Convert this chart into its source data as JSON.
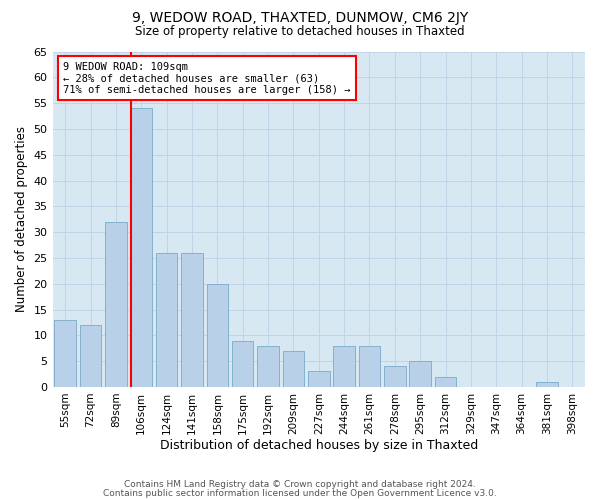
{
  "title1": "9, WEDOW ROAD, THAXTED, DUNMOW, CM6 2JY",
  "title2": "Size of property relative to detached houses in Thaxted",
  "xlabel": "Distribution of detached houses by size in Thaxted",
  "ylabel": "Number of detached properties",
  "categories": [
    "55sqm",
    "72sqm",
    "89sqm",
    "106sqm",
    "124sqm",
    "141sqm",
    "158sqm",
    "175sqm",
    "192sqm",
    "209sqm",
    "227sqm",
    "244sqm",
    "261sqm",
    "278sqm",
    "295sqm",
    "312sqm",
    "329sqm",
    "347sqm",
    "364sqm",
    "381sqm",
    "398sqm"
  ],
  "values": [
    13,
    12,
    32,
    54,
    26,
    26,
    20,
    9,
    8,
    7,
    3,
    8,
    8,
    4,
    5,
    2,
    0,
    0,
    0,
    1,
    0
  ],
  "bar_color": "#b8d0e8",
  "bar_edge_color": "#7aaac8",
  "red_line_index": 3,
  "annotation_text": "9 WEDOW ROAD: 109sqm\n← 28% of detached houses are smaller (63)\n71% of semi-detached houses are larger (158) →",
  "annotation_box_color": "white",
  "annotation_box_edge_color": "red",
  "footer1": "Contains HM Land Registry data © Crown copyright and database right 2024.",
  "footer2": "Contains public sector information licensed under the Open Government Licence v3.0.",
  "ylim": [
    0,
    65
  ],
  "yticks": [
    0,
    5,
    10,
    15,
    20,
    25,
    30,
    35,
    40,
    45,
    50,
    55,
    60,
    65
  ],
  "grid_color": "#c0d4e8",
  "bg_color": "#d8e8f2"
}
